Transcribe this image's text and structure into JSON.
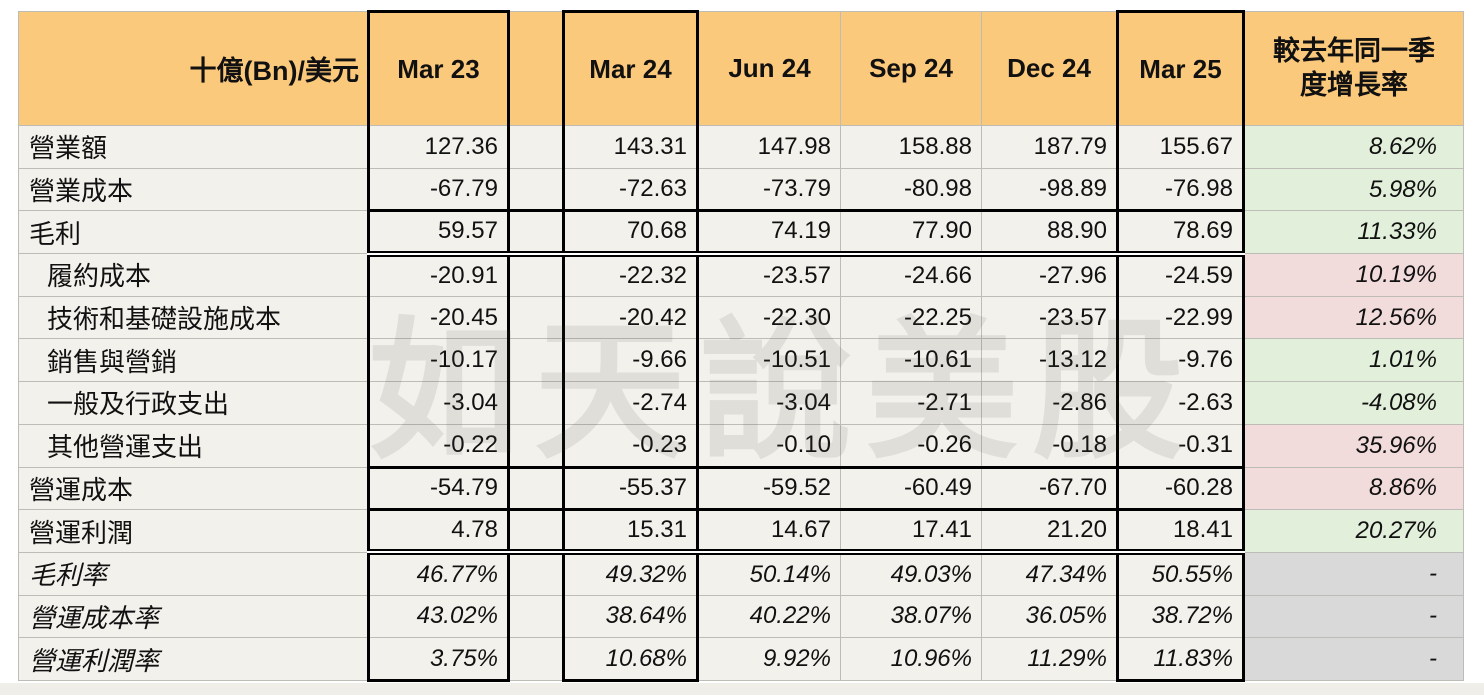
{
  "watermark": "如天說美股",
  "header": {
    "unit_label": "十億(Bn)/美元",
    "growth_label_l1": "較去年同一季",
    "growth_label_l2": "度增長率"
  },
  "colors": {
    "header_bg": "#FBC97C",
    "cell_bg": "#F2F1EC",
    "green": "#E2EFDA",
    "pink": "#F2DCDB",
    "gray": "#D9D9D9",
    "gridline": "#BDBCB7",
    "border_thick": "#000000"
  },
  "chart_data": {
    "type": "table",
    "title": "十億(Bn)/美元",
    "quarter_columns": [
      "Mar 23",
      "Mar 24",
      "Jun 24",
      "Sep 24",
      "Dec 24",
      "Mar 25"
    ],
    "growth_header": "較去年同一季度增長率",
    "rows": [
      {
        "label": "營業額",
        "indent": false,
        "italic": false,
        "values": [
          "127.36",
          "143.31",
          "147.98",
          "158.88",
          "187.79",
          "155.67"
        ],
        "growth": "8.62%",
        "growth_tone": "green"
      },
      {
        "label": "營業成本",
        "indent": false,
        "italic": false,
        "values": [
          "-67.79",
          "-72.63",
          "-73.79",
          "-80.98",
          "-98.89",
          "-76.98"
        ],
        "growth": "5.98%",
        "growth_tone": "green"
      },
      {
        "label": "毛利",
        "indent": false,
        "italic": false,
        "values": [
          "59.57",
          "70.68",
          "74.19",
          "77.90",
          "88.90",
          "78.69"
        ],
        "growth": "11.33%",
        "growth_tone": "green"
      },
      {
        "label": "履約成本",
        "indent": true,
        "italic": false,
        "values": [
          "-20.91",
          "-22.32",
          "-23.57",
          "-24.66",
          "-27.96",
          "-24.59"
        ],
        "growth": "10.19%",
        "growth_tone": "pink"
      },
      {
        "label": "技術和基礎設施成本",
        "indent": true,
        "italic": false,
        "values": [
          "-20.45",
          "-20.42",
          "-22.30",
          "-22.25",
          "-23.57",
          "-22.99"
        ],
        "growth": "12.56%",
        "growth_tone": "pink"
      },
      {
        "label": "銷售與營銷",
        "indent": true,
        "italic": false,
        "values": [
          "-10.17",
          "-9.66",
          "-10.51",
          "-10.61",
          "-13.12",
          "-9.76"
        ],
        "growth": "1.01%",
        "growth_tone": "green"
      },
      {
        "label": "一般及行政支出",
        "indent": true,
        "italic": false,
        "values": [
          "-3.04",
          "-2.74",
          "-3.04",
          "-2.71",
          "-2.86",
          "-2.63"
        ],
        "growth": "-4.08%",
        "growth_tone": "green"
      },
      {
        "label": "其他營運支出",
        "indent": true,
        "italic": false,
        "values": [
          "-0.22",
          "-0.23",
          "-0.10",
          "-0.26",
          "-0.18",
          "-0.31"
        ],
        "growth": "35.96%",
        "growth_tone": "pink"
      },
      {
        "label": "營運成本",
        "indent": false,
        "italic": false,
        "values": [
          "-54.79",
          "-55.37",
          "-59.52",
          "-60.49",
          "-67.70",
          "-60.28"
        ],
        "growth": "8.86%",
        "growth_tone": "pink"
      },
      {
        "label": "營運利潤",
        "indent": false,
        "italic": false,
        "values": [
          "4.78",
          "15.31",
          "14.67",
          "17.41",
          "21.20",
          "18.41"
        ],
        "growth": "20.27%",
        "growth_tone": "green"
      },
      {
        "label": "毛利率",
        "indent": false,
        "italic": true,
        "values": [
          "46.77%",
          "49.32%",
          "50.14%",
          "49.03%",
          "47.34%",
          "50.55%"
        ],
        "growth": "-",
        "growth_tone": "gray"
      },
      {
        "label": "營運成本率",
        "indent": false,
        "italic": true,
        "values": [
          "43.02%",
          "38.64%",
          "40.22%",
          "38.07%",
          "36.05%",
          "38.72%"
        ],
        "growth": "-",
        "growth_tone": "gray"
      },
      {
        "label": "營運利潤率",
        "indent": false,
        "italic": true,
        "values": [
          "3.75%",
          "10.68%",
          "9.92%",
          "10.96%",
          "11.29%",
          "11.83%"
        ],
        "growth": "-",
        "growth_tone": "gray"
      }
    ]
  }
}
